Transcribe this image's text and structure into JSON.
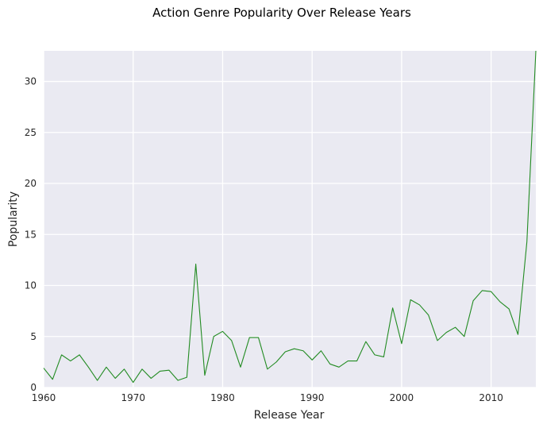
{
  "chart_data": {
    "type": "line",
    "title": "Action Genre Popularity Over Release Years",
    "xlabel": "Release Year",
    "ylabel": "Popularity",
    "xlim": [
      1960,
      2015
    ],
    "ylim": [
      0,
      33
    ],
    "xticks": [
      1960,
      1970,
      1980,
      1990,
      2000,
      2010
    ],
    "yticks": [
      0,
      5,
      10,
      15,
      20,
      25,
      30
    ],
    "grid": true,
    "background_color": "#eaeaf2",
    "grid_color": "#ffffff",
    "series": [
      {
        "color": "#228b22",
        "x": [
          1960,
          1961,
          1962,
          1963,
          1964,
          1965,
          1966,
          1967,
          1968,
          1969,
          1970,
          1971,
          1972,
          1973,
          1974,
          1975,
          1976,
          1977,
          1978,
          1979,
          1980,
          1981,
          1982,
          1983,
          1984,
          1985,
          1986,
          1987,
          1988,
          1989,
          1990,
          1991,
          1992,
          1993,
          1994,
          1995,
          1996,
          1997,
          1998,
          1999,
          2000,
          2001,
          2002,
          2003,
          2004,
          2005,
          2006,
          2007,
          2008,
          2009,
          2010,
          2011,
          2012,
          2013,
          2014,
          2015
        ],
        "y": [
          1.9,
          0.8,
          3.2,
          2.6,
          3.2,
          2.0,
          0.7,
          2.0,
          0.9,
          1.8,
          0.5,
          1.8,
          0.9,
          1.6,
          1.7,
          0.7,
          1.0,
          12.1,
          1.2,
          5.0,
          5.5,
          4.6,
          2.0,
          4.9,
          4.9,
          1.8,
          2.5,
          3.5,
          3.8,
          3.6,
          2.7,
          3.6,
          2.3,
          2.0,
          2.6,
          2.6,
          4.5,
          3.2,
          3.0,
          7.8,
          4.3,
          8.6,
          8.1,
          7.1,
          4.6,
          5.4,
          5.9,
          5.0,
          8.5,
          9.5,
          9.4,
          8.4,
          7.7,
          5.2,
          14.3,
          33.0
        ]
      }
    ]
  }
}
